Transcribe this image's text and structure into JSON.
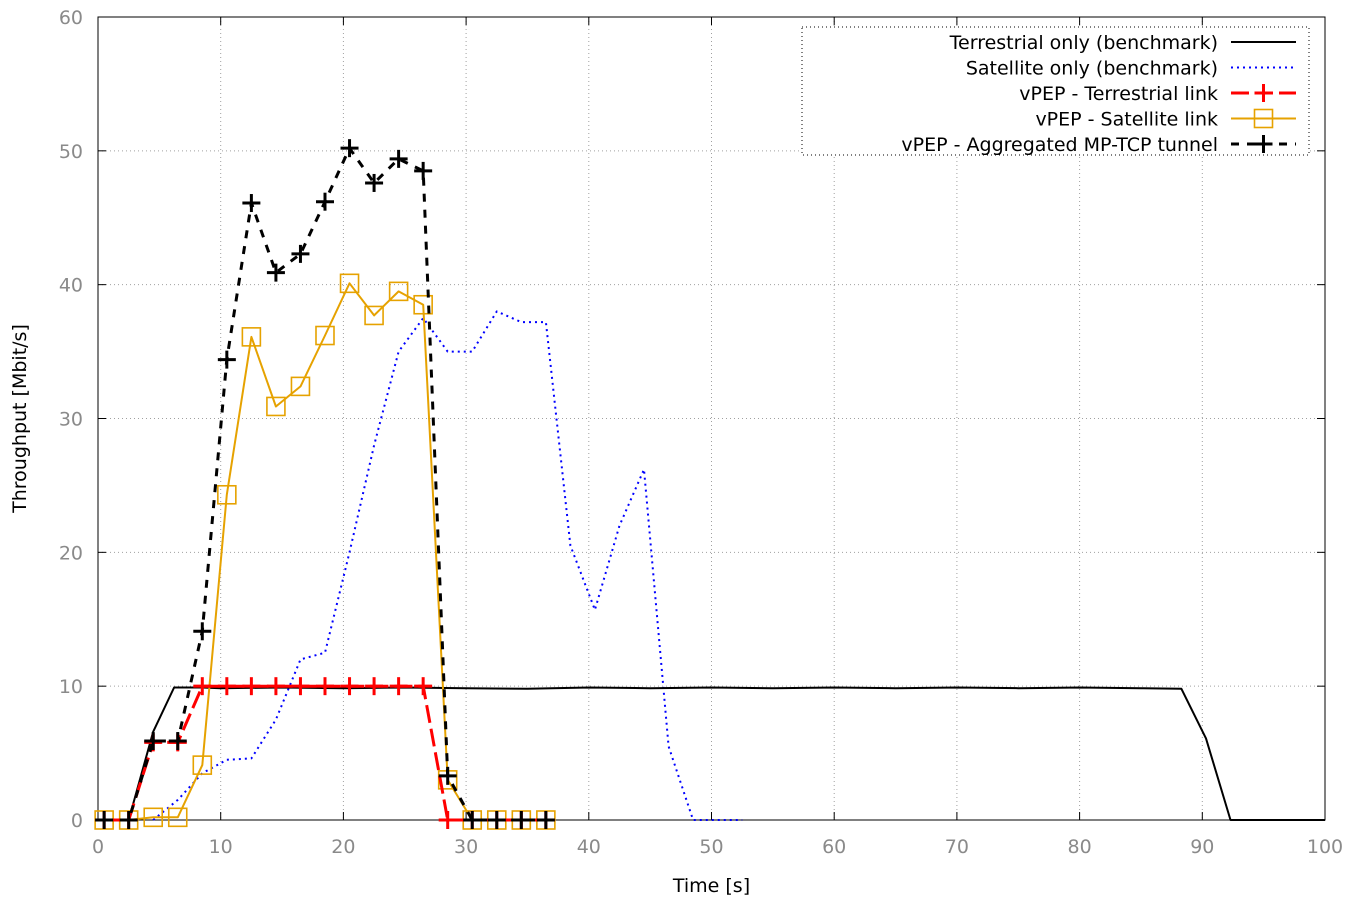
{
  "chart_data": {
    "type": "line",
    "xlabel": "Time [s]",
    "ylabel": "Throughput [Mbit/s]",
    "xlim": [
      0,
      100
    ],
    "ylim": [
      0,
      60
    ],
    "x_ticks": [
      0,
      10,
      20,
      30,
      40,
      50,
      60,
      70,
      80,
      90,
      100
    ],
    "y_ticks": [
      0,
      10,
      20,
      30,
      40,
      50,
      60
    ],
    "grid": true,
    "legend_position": "top-right",
    "series": [
      {
        "name": "Terrestrial only (benchmark)",
        "color": "#000000",
        "style": "solid",
        "marker": "none",
        "points": [
          [
            0.5,
            0
          ],
          [
            2.5,
            0
          ],
          [
            4.5,
            6.6
          ],
          [
            6.2,
            9.9
          ],
          [
            8.5,
            9.9
          ],
          [
            10,
            9.85
          ],
          [
            15,
            9.9
          ],
          [
            20,
            9.85
          ],
          [
            25,
            9.9
          ],
          [
            30,
            9.85
          ],
          [
            35,
            9.8
          ],
          [
            40,
            9.9
          ],
          [
            45,
            9.85
          ],
          [
            50,
            9.9
          ],
          [
            55,
            9.85
          ],
          [
            60,
            9.9
          ],
          [
            65,
            9.85
          ],
          [
            70,
            9.9
          ],
          [
            75,
            9.85
          ],
          [
            80,
            9.9
          ],
          [
            85,
            9.85
          ],
          [
            88.3,
            9.8
          ],
          [
            90.3,
            6.1
          ],
          [
            92.3,
            0
          ],
          [
            100,
            0
          ]
        ]
      },
      {
        "name": "Satellite only (benchmark)",
        "color": "#0000ff",
        "style": "dotted",
        "marker": "none",
        "points": [
          [
            4.5,
            0
          ],
          [
            6.5,
            1.5
          ],
          [
            8.5,
            3.5
          ],
          [
            10.5,
            4.5
          ],
          [
            12.5,
            4.6
          ],
          [
            14.5,
            7.5
          ],
          [
            16.5,
            12.0
          ],
          [
            18.5,
            12.5
          ],
          [
            20.5,
            20.0
          ],
          [
            22.5,
            28.0
          ],
          [
            24.5,
            35.0
          ],
          [
            26.5,
            37.5
          ],
          [
            28.5,
            35.0
          ],
          [
            30.5,
            35.0
          ],
          [
            32.5,
            38.0
          ],
          [
            34.5,
            37.2
          ],
          [
            36.5,
            37.2
          ],
          [
            38.5,
            20.5
          ],
          [
            40.5,
            15.7
          ],
          [
            42.5,
            22.0
          ],
          [
            44.5,
            26.2
          ],
          [
            46.5,
            5.5
          ],
          [
            48.5,
            0
          ],
          [
            52.5,
            0
          ]
        ]
      },
      {
        "name": "vPEP - Terrestrial link",
        "color": "#ff0000",
        "style": "long-dash",
        "marker": "plus",
        "points": [
          [
            0.5,
            0
          ],
          [
            2.5,
            0
          ],
          [
            4.5,
            5.8
          ],
          [
            6.5,
            5.8
          ],
          [
            8.5,
            10.0
          ],
          [
            10.5,
            10.0
          ],
          [
            12.5,
            10.0
          ],
          [
            14.5,
            10.0
          ],
          [
            16.5,
            10.0
          ],
          [
            18.5,
            10.0
          ],
          [
            20.5,
            10.0
          ],
          [
            22.5,
            10.0
          ],
          [
            24.5,
            10.0
          ],
          [
            26.5,
            10.0
          ],
          [
            28.5,
            0
          ],
          [
            30.5,
            0
          ],
          [
            32.5,
            0
          ],
          [
            34.5,
            0
          ],
          [
            36.5,
            0
          ]
        ]
      },
      {
        "name": "vPEP - Satellite link",
        "color": "#e6a200",
        "style": "solid",
        "marker": "square",
        "points": [
          [
            0.5,
            0
          ],
          [
            2.5,
            0
          ],
          [
            4.5,
            0.2
          ],
          [
            6.5,
            0.2
          ],
          [
            8.5,
            4.1
          ],
          [
            10.5,
            24.3
          ],
          [
            12.5,
            36.1
          ],
          [
            14.5,
            30.9
          ],
          [
            16.5,
            32.4
          ],
          [
            18.5,
            36.2
          ],
          [
            20.5,
            40.1
          ],
          [
            22.5,
            37.7
          ],
          [
            24.5,
            39.5
          ],
          [
            26.5,
            38.5
          ],
          [
            28.5,
            3.0
          ],
          [
            30.5,
            0
          ],
          [
            32.5,
            0
          ],
          [
            34.5,
            0
          ],
          [
            36.5,
            0
          ]
        ]
      },
      {
        "name": "vPEP - Aggregated MP-TCP tunnel",
        "color": "#000000",
        "style": "dashed",
        "marker": "plus",
        "points": [
          [
            0.5,
            0
          ],
          [
            2.5,
            0
          ],
          [
            4.5,
            5.9
          ],
          [
            6.5,
            5.9
          ],
          [
            8.5,
            14.1
          ],
          [
            10.5,
            34.4
          ],
          [
            12.5,
            46.1
          ],
          [
            14.5,
            40.9
          ],
          [
            16.5,
            42.3
          ],
          [
            18.5,
            46.2
          ],
          [
            20.5,
            50.2
          ],
          [
            22.5,
            47.6
          ],
          [
            24.5,
            49.4
          ],
          [
            26.5,
            48.5
          ],
          [
            28.5,
            3.3
          ],
          [
            30.5,
            0
          ],
          [
            32.5,
            0
          ],
          [
            34.5,
            0
          ],
          [
            36.5,
            0
          ]
        ]
      }
    ]
  }
}
